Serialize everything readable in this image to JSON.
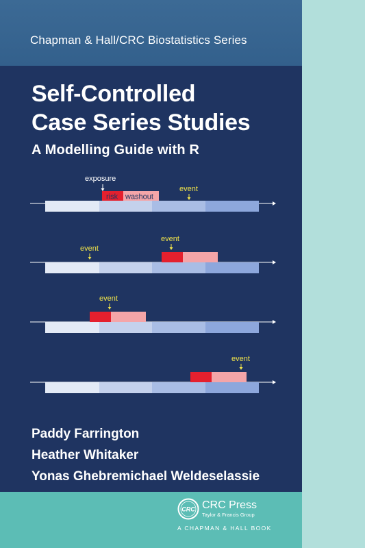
{
  "series": "Chapman & Hall/CRC Biostatistics Series",
  "title_lines": [
    "Self-Controlled",
    "Case Series Studies"
  ],
  "subtitle": "A Modelling Guide with R",
  "diagram": {
    "label_exposure": "exposure",
    "label_risk": "risk",
    "label_washout": "washout",
    "label_event": "event"
  },
  "authors": [
    "Paddy Farrington",
    "Heather Whitaker",
    "Yonas Ghebremichael Weldeselassie"
  ],
  "publisher": {
    "name": "CRC Press",
    "group": "Taylor & Francis Group",
    "imprint": "A CHAPMAN & HALL BOOK"
  },
  "colors": {
    "risk": "#e4202e",
    "washout": "#f4a5a8",
    "event_label": "#f0e34a",
    "timeline_segments": [
      "#e3eaf6",
      "#c4d1ec",
      "#a9bde5",
      "#8da7dc"
    ]
  }
}
